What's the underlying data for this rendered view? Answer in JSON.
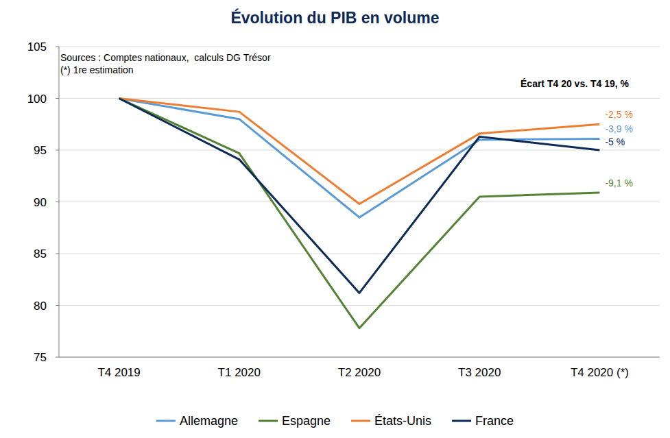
{
  "chart_data": {
    "type": "line",
    "title": "Évolution du PIB en volume",
    "source": "Sources : Comptes nationaux,  calculs DG Trésor",
    "note": "(*) 1re estimation",
    "annotation_title": "Écart T4 20 vs. T4 19, %",
    "categories": [
      "T4 2019",
      "T1 2020",
      "T2 2020",
      "T3 2020",
      "T4 2020 (*)"
    ],
    "series": [
      {
        "name": "Allemagne",
        "color": "#5b9bd5",
        "values": [
          100,
          98.0,
          88.5,
          96.0,
          96.1
        ],
        "annotation": "-3,9 %"
      },
      {
        "name": "Espagne",
        "color": "#548235",
        "values": [
          100,
          94.7,
          77.8,
          90.5,
          90.9
        ],
        "annotation": "-9,1 %"
      },
      {
        "name": "États-Unis",
        "color": "#ed7d31",
        "values": [
          100,
          98.7,
          89.8,
          96.6,
          97.5
        ],
        "annotation": "-2,5 %"
      },
      {
        "name": "France",
        "color": "#0b2a55",
        "values": [
          100,
          94.1,
          81.2,
          96.3,
          95.0
        ],
        "annotation": "-5 %"
      }
    ],
    "ylim": [
      75,
      105
    ],
    "yticks": [
      75,
      80,
      85,
      90,
      95,
      100,
      105
    ],
    "grid": true,
    "legend": "bottom"
  }
}
